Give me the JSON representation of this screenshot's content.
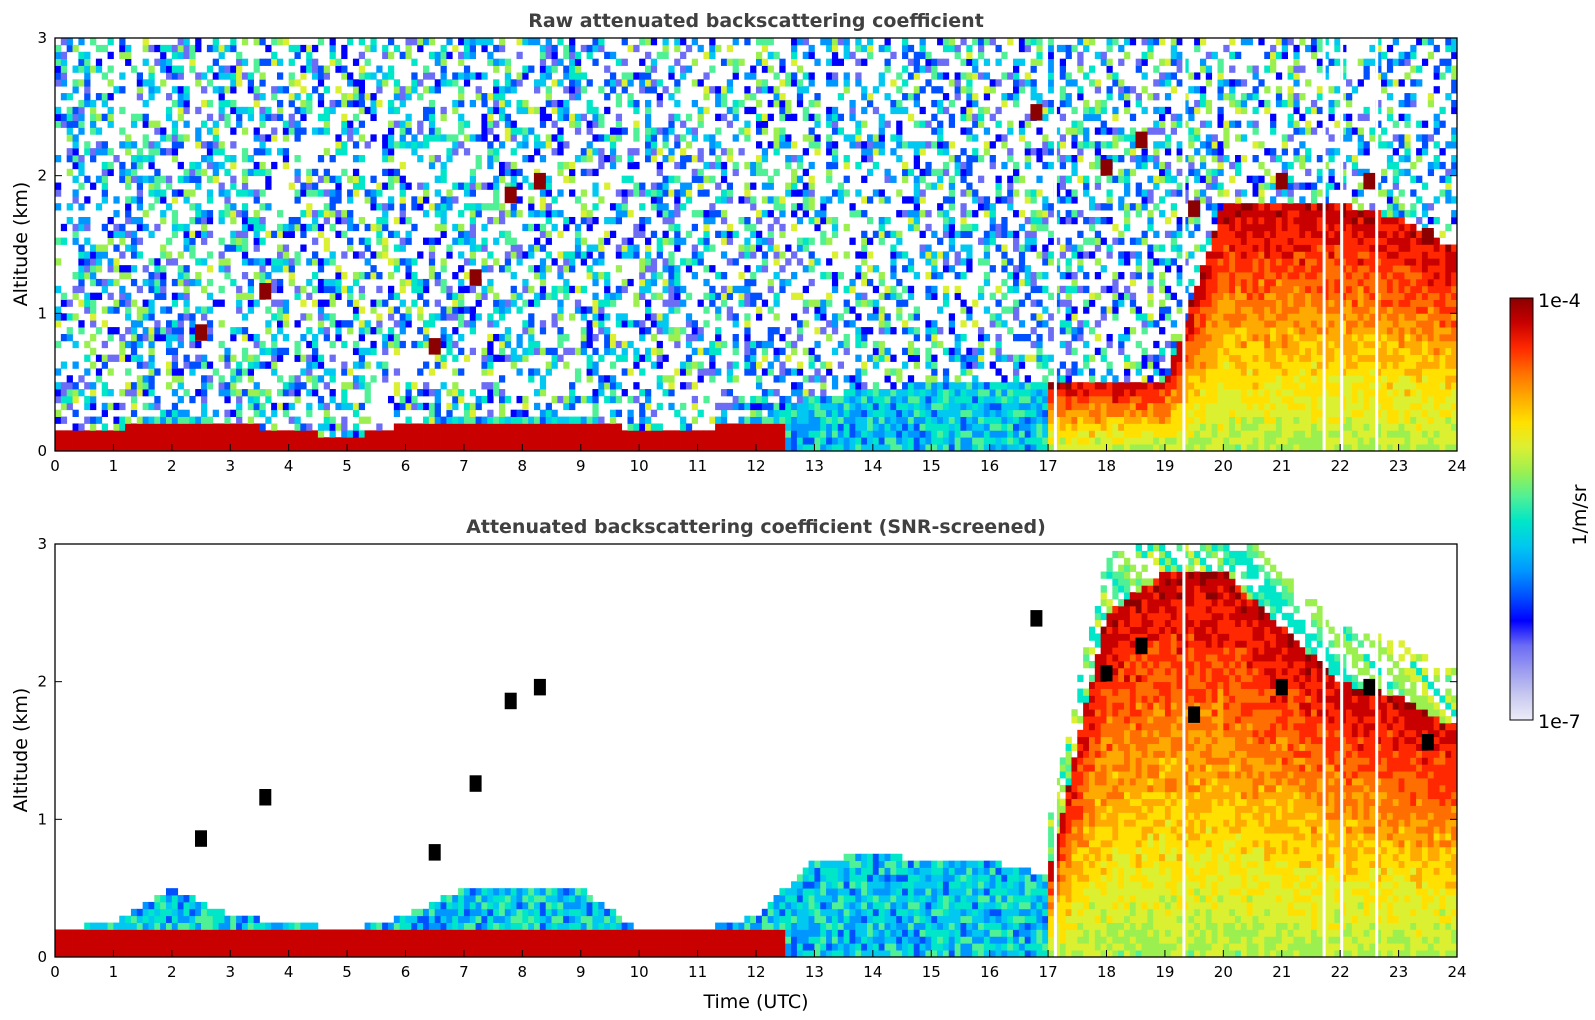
{
  "figure": {
    "colorbar": {
      "label": "1/m/sr",
      "max_label": "1e-4",
      "min_label": "1e-7",
      "scale": "log",
      "range": [
        1e-07,
        0.0001
      ],
      "colormap": [
        "#ececf8",
        "#c8c8f0",
        "#9b9bf0",
        "#6c6cf5",
        "#0000ff",
        "#0050ff",
        "#0096ff",
        "#00c8f0",
        "#00e6c8",
        "#50f096",
        "#9bf050",
        "#dcf032",
        "#ffe000",
        "#ffaa00",
        "#ff6e00",
        "#ff2800",
        "#c80000",
        "#8b0000"
      ]
    },
    "x_ticks": [
      "0",
      "1",
      "2",
      "3",
      "4",
      "5",
      "6",
      "7",
      "8",
      "9",
      "10",
      "11",
      "12",
      "13",
      "14",
      "15",
      "16",
      "17",
      "18",
      "19",
      "20",
      "21",
      "22",
      "23",
      "24"
    ],
    "y_ticks": [
      "0",
      "1",
      "2",
      "3"
    ]
  },
  "chart_data": [
    {
      "type": "heatmap",
      "title": "Raw attenuated backscattering coefficient",
      "xlabel": "",
      "ylabel": "Altitude (km)",
      "xlim": [
        0,
        24
      ],
      "ylim": [
        0,
        3
      ],
      "x_unit": "UTC hour",
      "y_unit": "km",
      "features": {
        "surface_aerosol_layer_top_km": [
          [
            0,
            0.15
          ],
          [
            1,
            0.15
          ],
          [
            2,
            0.3
          ],
          [
            3,
            0.2
          ],
          [
            4,
            0.15
          ],
          [
            5,
            0.1
          ],
          [
            6,
            0.2
          ],
          [
            7,
            0.25
          ],
          [
            8,
            0.25
          ],
          [
            9,
            0.25
          ],
          [
            10,
            0.15
          ],
          [
            11,
            0.15
          ],
          [
            12,
            0.25
          ],
          [
            13,
            0.4
          ],
          [
            14,
            0.45
          ],
          [
            15,
            0.5
          ],
          [
            16,
            0.5
          ],
          [
            17,
            0.5
          ],
          [
            18,
            0.5
          ],
          [
            19,
            0.5
          ],
          [
            20,
            1.8
          ],
          [
            21,
            1.8
          ],
          [
            22,
            1.8
          ],
          [
            23,
            1.7
          ],
          [
            23.8,
            1.5
          ]
        ],
        "cloud_base_km": [
          [
            2.5,
            0.8
          ],
          [
            3.6,
            1.1
          ],
          [
            6.5,
            0.7
          ],
          [
            7.2,
            1.2
          ],
          [
            7.8,
            1.8
          ],
          [
            8.3,
            1.9
          ],
          [
            16.8,
            2.4
          ],
          [
            18.0,
            2.0
          ],
          [
            18.6,
            2.2
          ],
          [
            19.5,
            1.7
          ],
          [
            21.0,
            1.9
          ],
          [
            22.5,
            1.9
          ],
          [
            23.5,
            1.5
          ]
        ],
        "instrument_gaps_utc": [
          17.1,
          19.3,
          21.7,
          22.0,
          22.6
        ]
      }
    },
    {
      "type": "heatmap",
      "title": "Attenuated backscattering coefficient (SNR-screened)",
      "xlabel": "Time (UTC)",
      "ylabel": "Altitude (km)",
      "xlim": [
        0,
        24
      ],
      "ylim": [
        0,
        3
      ],
      "x_unit": "UTC hour",
      "y_unit": "km",
      "features": {
        "surface_aerosol_layer_top_km": [
          [
            0,
            0.2
          ],
          [
            1,
            0.25
          ],
          [
            2,
            0.5
          ],
          [
            3,
            0.3
          ],
          [
            4,
            0.25
          ],
          [
            5,
            0.2
          ],
          [
            6,
            0.3
          ],
          [
            7,
            0.5
          ],
          [
            8,
            0.5
          ],
          [
            9,
            0.5
          ],
          [
            10,
            0.2
          ],
          [
            11,
            0.2
          ],
          [
            12,
            0.3
          ],
          [
            13,
            0.7
          ],
          [
            14,
            0.75
          ],
          [
            15,
            0.7
          ],
          [
            16,
            0.7
          ],
          [
            17,
            0.6
          ],
          [
            18,
            2.5
          ],
          [
            19,
            2.8
          ],
          [
            20,
            2.8
          ],
          [
            21,
            2.4
          ],
          [
            22,
            2.0
          ],
          [
            23,
            1.9
          ],
          [
            23.8,
            1.7
          ]
        ],
        "cloud_base_km": [
          [
            2.5,
            0.8
          ],
          [
            3.6,
            1.1
          ],
          [
            6.5,
            0.7
          ],
          [
            7.2,
            1.2
          ],
          [
            7.8,
            1.8
          ],
          [
            8.3,
            1.9
          ],
          [
            16.8,
            2.4
          ],
          [
            18.0,
            2.0
          ],
          [
            18.6,
            2.2
          ],
          [
            19.5,
            1.7
          ],
          [
            21.0,
            1.9
          ],
          [
            22.5,
            1.9
          ],
          [
            23.5,
            1.5
          ]
        ],
        "instrument_gaps_utc": [
          17.1,
          19.3,
          21.7,
          22.0,
          22.6
        ]
      }
    }
  ]
}
